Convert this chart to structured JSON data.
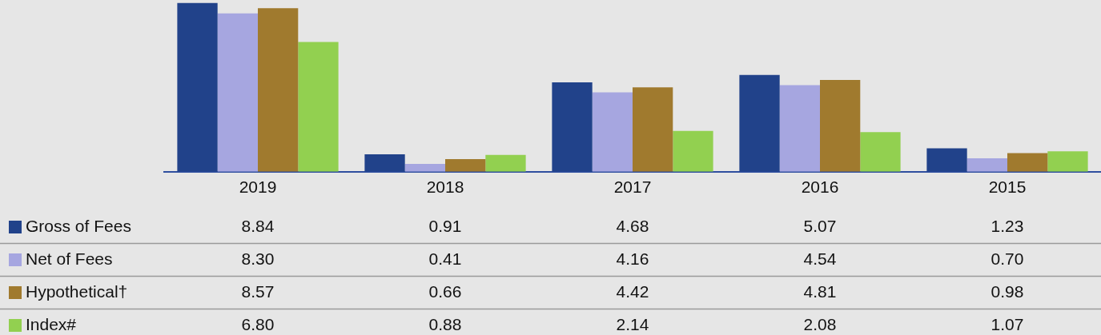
{
  "chart_data": {
    "type": "bar",
    "categories": [
      "2019",
      "2018",
      "2017",
      "2016",
      "2015"
    ],
    "series": [
      {
        "name": "Gross of Fees",
        "color": "#21428a",
        "values": [
          8.84,
          0.91,
          4.68,
          5.07,
          1.23
        ],
        "value_labels": [
          "8.84",
          "0.91",
          "4.68",
          "5.07",
          "1.23"
        ]
      },
      {
        "name": "Net of Fees",
        "color": "#a6a6e0",
        "values": [
          8.3,
          0.41,
          4.16,
          4.54,
          0.7
        ],
        "value_labels": [
          "8.30",
          "0.41",
          "4.16",
          "4.54",
          "0.70"
        ]
      },
      {
        "name": "Hypothetical†",
        "color": "#a07a2e",
        "values": [
          8.57,
          0.66,
          4.42,
          4.81,
          0.98
        ],
        "value_labels": [
          "8.57",
          "0.66",
          "4.42",
          "4.81",
          "0.98"
        ]
      },
      {
        "name": "Index#",
        "color": "#92d050",
        "values": [
          6.8,
          0.88,
          2.14,
          2.08,
          1.07
        ],
        "value_labels": [
          "6.80",
          "0.88",
          "2.14",
          "2.08",
          "1.07"
        ]
      }
    ],
    "tick_labels": "x",
    "grid": false,
    "legend": "bottom"
  }
}
